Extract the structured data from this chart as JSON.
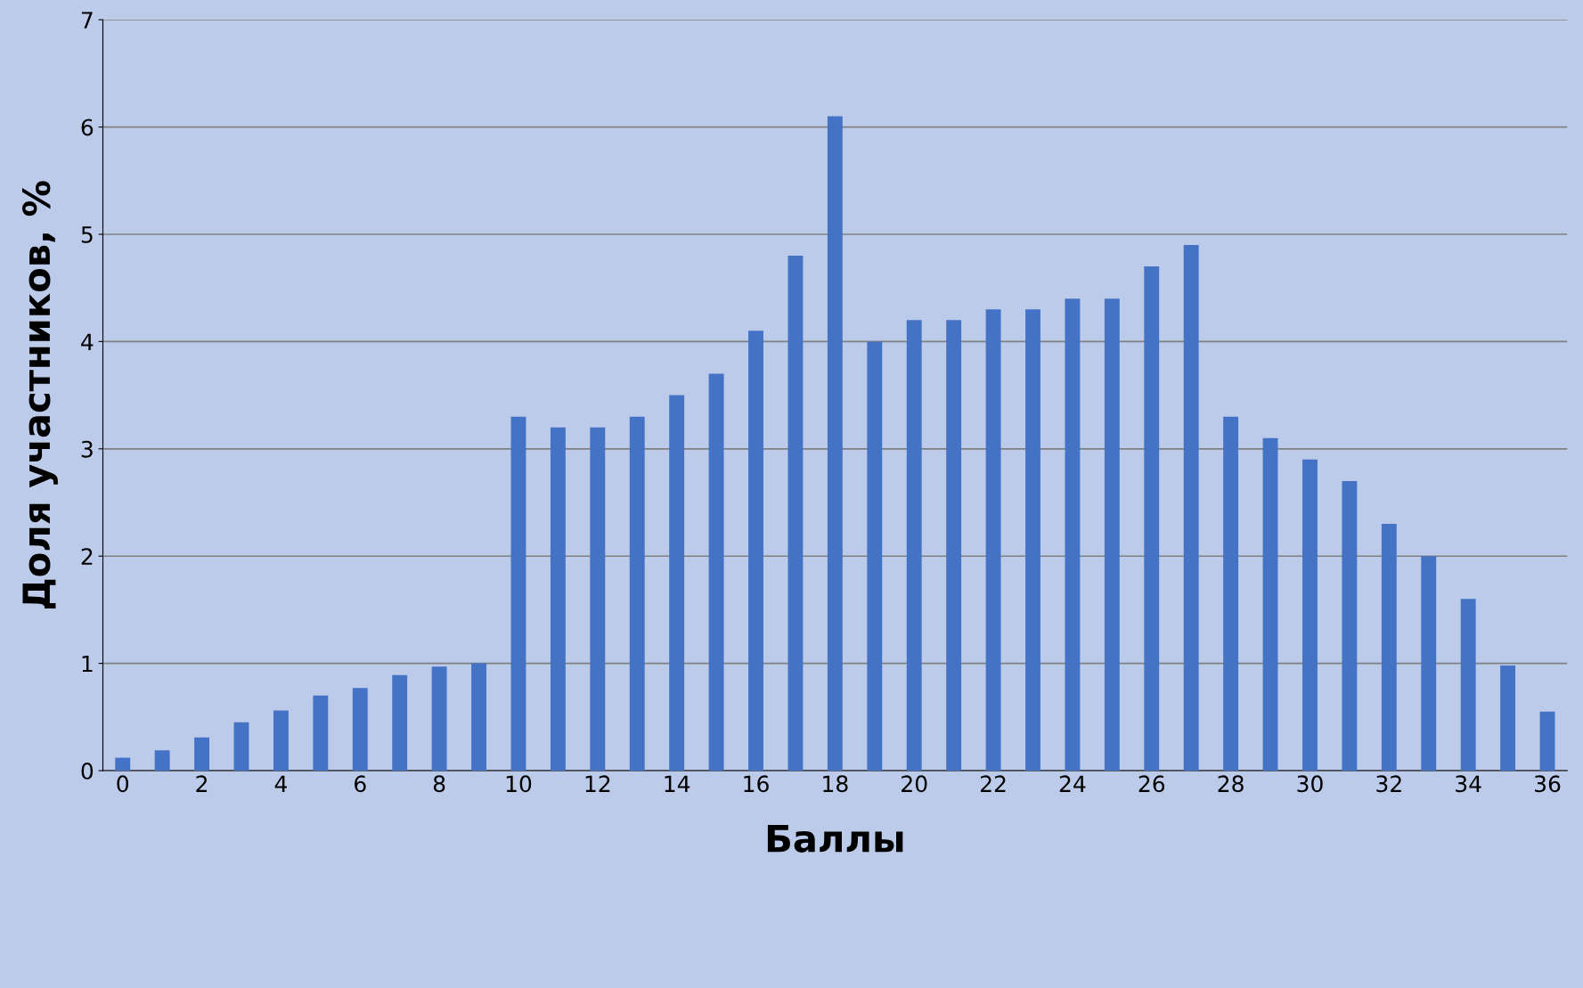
{
  "chart_data": {
    "type": "bar",
    "xlabel": "Баллы",
    "ylabel": "Доля участников, %",
    "categories": [
      "0",
      null,
      "2",
      null,
      "4",
      null,
      "6",
      null,
      "8",
      null,
      "10",
      null,
      "12",
      null,
      "14",
      null,
      "16",
      null,
      "18",
      null,
      "20",
      null,
      "22",
      null,
      "24",
      null,
      "26",
      null,
      "28",
      null,
      "30",
      null,
      "32",
      null,
      "34",
      null,
      "36"
    ],
    "values": [
      0.12,
      0.19,
      0.31,
      0.45,
      0.56,
      0.7,
      0.77,
      0.89,
      0.97,
      1.0,
      3.3,
      3.2,
      3.2,
      3.3,
      3.5,
      3.7,
      4.1,
      4.8,
      6.1,
      4.0,
      4.2,
      4.2,
      4.3,
      4.3,
      4.4,
      4.4,
      4.7,
      4.9,
      3.3,
      3.1,
      2.9,
      2.7,
      2.3,
      2.0,
      1.6,
      0.98,
      0.55
    ],
    "color": "#4472c4",
    "ylim": [
      0,
      7
    ],
    "yticks": [
      0,
      1,
      2,
      3,
      4,
      5,
      6,
      7
    ],
    "grid": "y"
  }
}
